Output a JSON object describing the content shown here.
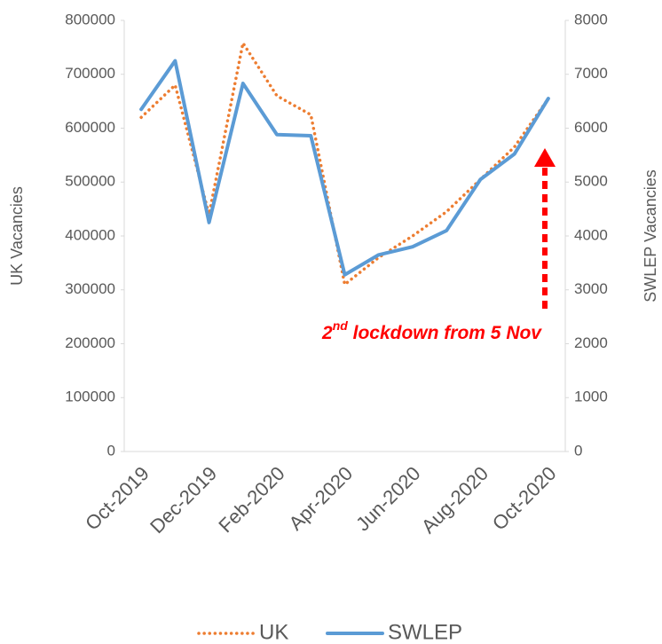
{
  "chart_data": {
    "type": "line",
    "categories": [
      "Oct-2019",
      null,
      "Dec-2019",
      null,
      "Feb-2020",
      null,
      "Apr-2020",
      null,
      "Jun-2020",
      null,
      "Aug-2020",
      null,
      "Oct-2020"
    ],
    "series": [
      {
        "name": "UK",
        "color": "#ed7d31",
        "values": [
          620000,
          680000,
          440000,
          758000,
          660000,
          625000,
          310000,
          360000,
          400000,
          445000,
          505000,
          565000,
          655000
        ]
      },
      {
        "name": "SWLEP",
        "color": "#5b9bd5",
        "axis": "y2",
        "values": [
          6350,
          7250,
          4250,
          6830,
          5880,
          5860,
          3280,
          3650,
          3800,
          4100,
          5050,
          5520,
          6550
        ]
      }
    ],
    "ylabel": "UK Vacancies",
    "y2label": "SWLEP Vacancies",
    "ylim": [
      0,
      800000
    ],
    "yticks": [
      0,
      100000,
      200000,
      300000,
      400000,
      500000,
      600000,
      700000,
      800000
    ],
    "y2lim": [
      0,
      8000
    ],
    "y2ticks": [
      0,
      1000,
      2000,
      3000,
      4000,
      5000,
      6000,
      7000,
      8000
    ],
    "annotation": [
      "2",
      "nd",
      " lockdown from 5 Nov"
    ],
    "legend": "bottom",
    "grid": false
  }
}
